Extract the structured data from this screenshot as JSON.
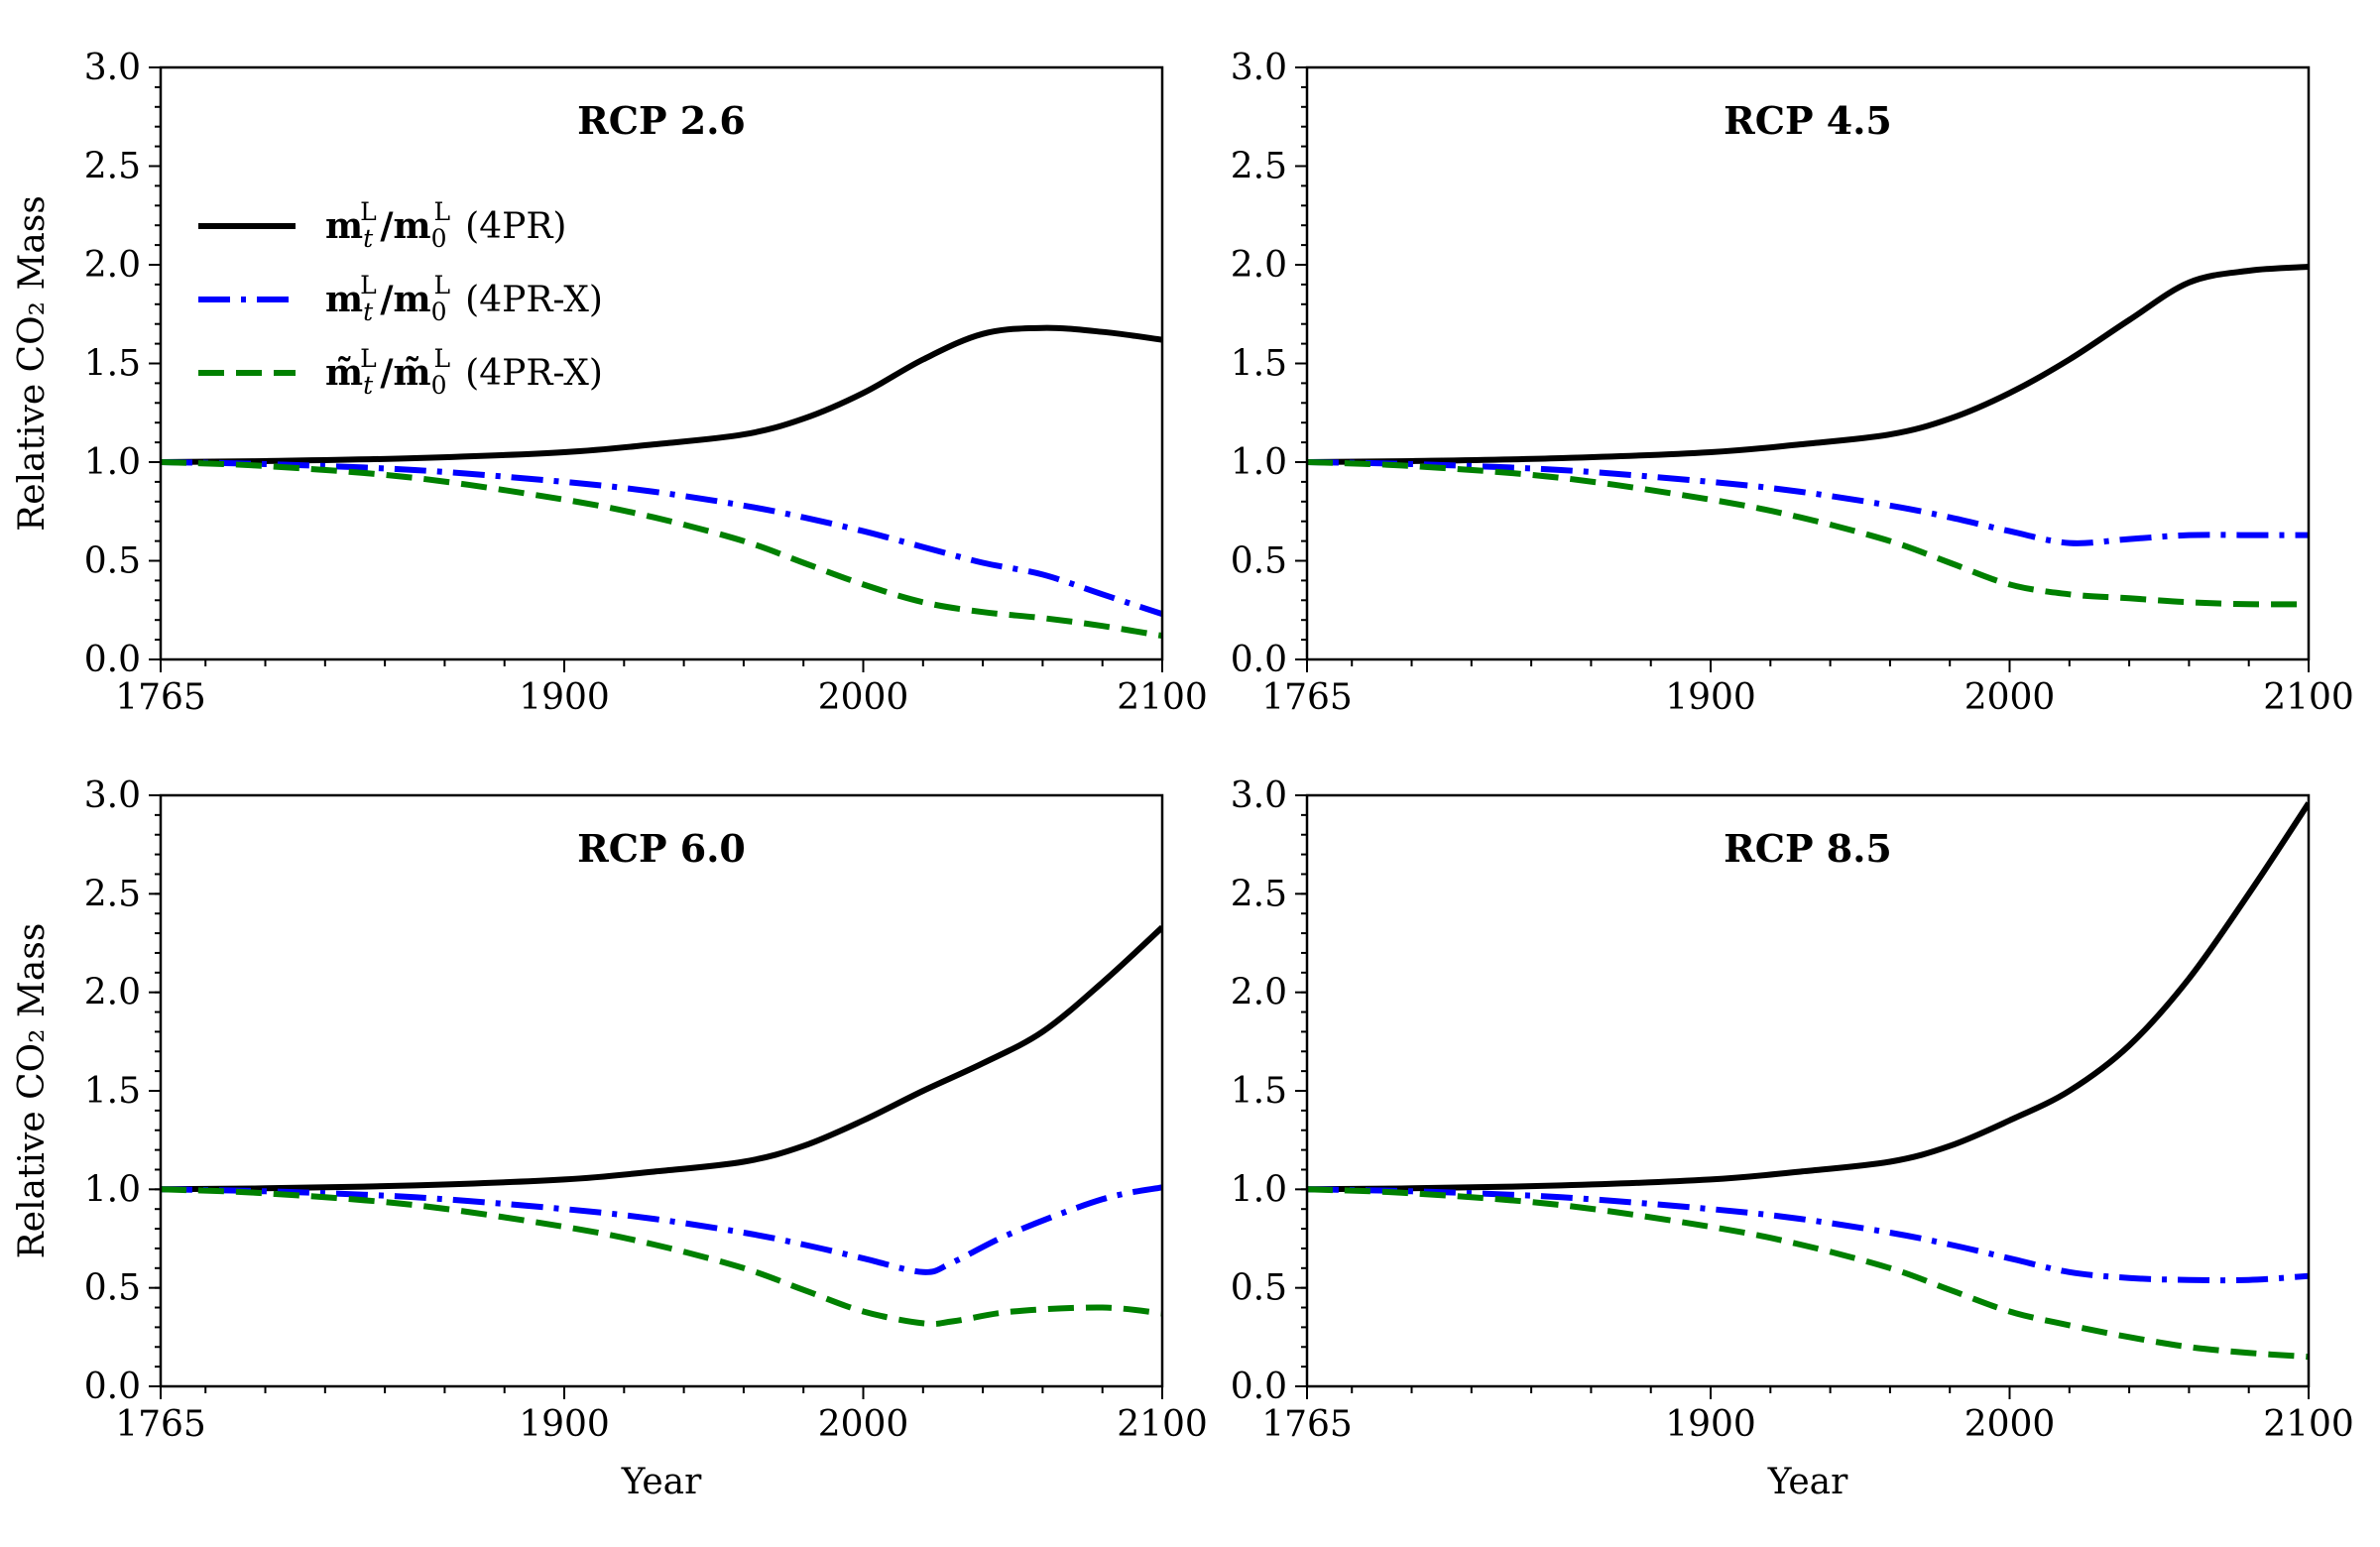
{
  "chart_data": [
    {
      "type": "line",
      "title": "RCP 2.6",
      "xlabel": "",
      "ylabel": "Relative CO₂ Mass",
      "xlim": [
        1765,
        2100
      ],
      "ylim": [
        0.0,
        3.0
      ],
      "xticks": [
        1765,
        1900,
        2000,
        2100
      ],
      "yticks": [
        "0.0",
        "0.5",
        "1.0",
        "1.5",
        "2.0",
        "2.5",
        "3.0"
      ],
      "legend": "upper-left",
      "series": [
        {
          "name": "m_t^L/m_0^L (4PR)",
          "color": "#000000",
          "style": "solid",
          "x": [
            1765,
            1800,
            1850,
            1900,
            1930,
            1960,
            1980,
            2000,
            2020,
            2040,
            2060,
            2080,
            2100
          ],
          "y": [
            1.0,
            1.005,
            1.02,
            1.05,
            1.09,
            1.14,
            1.22,
            1.35,
            1.52,
            1.65,
            1.68,
            1.66,
            1.62
          ]
        },
        {
          "name": "m_t^L/m_0^L (4PR-X)",
          "color": "#0000ff",
          "style": "dashdot",
          "x": [
            1765,
            1800,
            1850,
            1900,
            1930,
            1960,
            1980,
            2000,
            2020,
            2040,
            2060,
            2080,
            2100
          ],
          "y": [
            1.0,
            0.99,
            0.96,
            0.9,
            0.85,
            0.78,
            0.72,
            0.65,
            0.57,
            0.49,
            0.43,
            0.33,
            0.23
          ]
        },
        {
          "name": "m~_t^L/m~_0^L (4PR-X)",
          "color": "#008000",
          "style": "dashed",
          "x": [
            1765,
            1800,
            1850,
            1900,
            1930,
            1960,
            1980,
            2000,
            2020,
            2040,
            2060,
            2080,
            2100
          ],
          "y": [
            1.0,
            0.98,
            0.92,
            0.81,
            0.72,
            0.6,
            0.49,
            0.38,
            0.29,
            0.24,
            0.21,
            0.17,
            0.12
          ]
        }
      ]
    },
    {
      "type": "line",
      "title": "RCP 4.5",
      "xlabel": "",
      "ylabel": "",
      "xlim": [
        1765,
        2100
      ],
      "ylim": [
        0.0,
        3.0
      ],
      "xticks": [
        1765,
        1900,
        2000,
        2100
      ],
      "yticks": [
        "0.0",
        "0.5",
        "1.0",
        "1.5",
        "2.0",
        "2.5",
        "3.0"
      ],
      "series": [
        {
          "color": "#000000",
          "style": "solid",
          "x": [
            1765,
            1800,
            1850,
            1900,
            1930,
            1960,
            1980,
            2000,
            2020,
            2040,
            2060,
            2080,
            2100
          ],
          "y": [
            1.0,
            1.005,
            1.02,
            1.05,
            1.09,
            1.14,
            1.22,
            1.35,
            1.52,
            1.72,
            1.91,
            1.97,
            1.99
          ]
        },
        {
          "color": "#0000ff",
          "style": "dashdot",
          "x": [
            1765,
            1800,
            1850,
            1900,
            1930,
            1960,
            1980,
            2000,
            2020,
            2040,
            2060,
            2080,
            2100
          ],
          "y": [
            1.0,
            0.99,
            0.96,
            0.9,
            0.85,
            0.78,
            0.72,
            0.65,
            0.59,
            0.61,
            0.63,
            0.63,
            0.63
          ]
        },
        {
          "color": "#008000",
          "style": "dashed",
          "x": [
            1765,
            1800,
            1850,
            1900,
            1930,
            1960,
            1980,
            2000,
            2020,
            2040,
            2060,
            2080,
            2100
          ],
          "y": [
            1.0,
            0.98,
            0.92,
            0.81,
            0.72,
            0.6,
            0.49,
            0.38,
            0.33,
            0.31,
            0.29,
            0.28,
            0.28
          ]
        }
      ]
    },
    {
      "type": "line",
      "title": "RCP 6.0",
      "xlabel": "Year",
      "ylabel": "Relative CO₂ Mass",
      "xlim": [
        1765,
        2100
      ],
      "ylim": [
        0.0,
        3.0
      ],
      "xticks": [
        1765,
        1900,
        2000,
        2100
      ],
      "yticks": [
        "0.0",
        "0.5",
        "1.0",
        "1.5",
        "2.0",
        "2.5",
        "3.0"
      ],
      "series": [
        {
          "color": "#000000",
          "style": "solid",
          "x": [
            1765,
            1800,
            1850,
            1900,
            1930,
            1960,
            1980,
            2000,
            2020,
            2040,
            2060,
            2080,
            2100
          ],
          "y": [
            1.0,
            1.005,
            1.02,
            1.05,
            1.09,
            1.14,
            1.22,
            1.35,
            1.5,
            1.64,
            1.8,
            2.05,
            2.33
          ]
        },
        {
          "color": "#0000ff",
          "style": "dashdot",
          "x": [
            1765,
            1800,
            1850,
            1900,
            1930,
            1960,
            1980,
            2000,
            2020,
            2030,
            2050,
            2080,
            2100
          ],
          "y": [
            1.0,
            0.99,
            0.96,
            0.9,
            0.85,
            0.78,
            0.72,
            0.65,
            0.58,
            0.63,
            0.78,
            0.95,
            1.01
          ]
        },
        {
          "color": "#008000",
          "style": "dashed",
          "x": [
            1765,
            1800,
            1850,
            1900,
            1930,
            1960,
            1980,
            2000,
            2020,
            2030,
            2050,
            2080,
            2100
          ],
          "y": [
            1.0,
            0.98,
            0.92,
            0.81,
            0.72,
            0.6,
            0.49,
            0.38,
            0.32,
            0.33,
            0.38,
            0.4,
            0.37
          ]
        }
      ]
    },
    {
      "type": "line",
      "title": "RCP 8.5",
      "xlabel": "Year",
      "ylabel": "",
      "xlim": [
        1765,
        2100
      ],
      "ylim": [
        0.0,
        3.0
      ],
      "xticks": [
        1765,
        1900,
        2000,
        2100
      ],
      "yticks": [
        "0.0",
        "0.5",
        "1.0",
        "1.5",
        "2.0",
        "2.5",
        "3.0"
      ],
      "series": [
        {
          "color": "#000000",
          "style": "solid",
          "x": [
            1765,
            1800,
            1850,
            1900,
            1930,
            1960,
            1980,
            2000,
            2020,
            2040,
            2060,
            2080,
            2100
          ],
          "y": [
            1.0,
            1.005,
            1.02,
            1.05,
            1.09,
            1.14,
            1.22,
            1.35,
            1.5,
            1.73,
            2.07,
            2.5,
            2.96
          ]
        },
        {
          "color": "#0000ff",
          "style": "dashdot",
          "x": [
            1765,
            1800,
            1850,
            1900,
            1930,
            1960,
            1980,
            2000,
            2020,
            2040,
            2060,
            2080,
            2100
          ],
          "y": [
            1.0,
            0.99,
            0.96,
            0.9,
            0.85,
            0.78,
            0.72,
            0.65,
            0.58,
            0.55,
            0.54,
            0.54,
            0.56
          ]
        },
        {
          "color": "#008000",
          "style": "dashed",
          "x": [
            1765,
            1800,
            1850,
            1900,
            1930,
            1960,
            1980,
            2000,
            2020,
            2040,
            2060,
            2080,
            2100
          ],
          "y": [
            1.0,
            0.98,
            0.92,
            0.81,
            0.72,
            0.6,
            0.49,
            0.38,
            0.31,
            0.25,
            0.2,
            0.17,
            0.15
          ]
        }
      ]
    }
  ]
}
